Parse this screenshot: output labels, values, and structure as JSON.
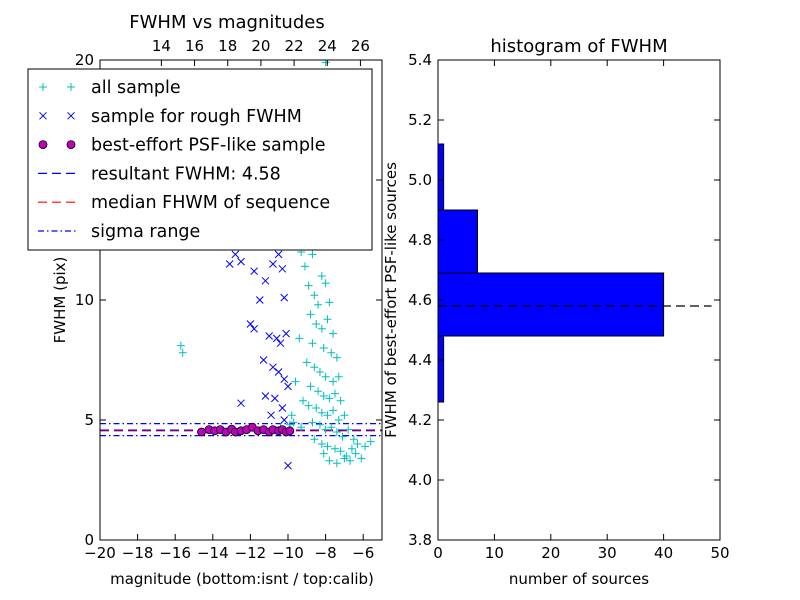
{
  "chart_data": [
    {
      "type": "scatter",
      "title": "FWHM vs magnitudes",
      "xlabel": "magnitude (bottom:isnt / top:calib)",
      "ylabel": "FWHM (pix)",
      "xlim": [
        -20,
        -5
      ],
      "ylim": [
        0,
        20
      ],
      "x_ticks": [
        "−20",
        "−18",
        "−16",
        "−14",
        "−12",
        "−10",
        "−8",
        "−6"
      ],
      "y_ticks": [
        "0",
        "5",
        "10",
        "15",
        "20"
      ],
      "top_axis": {
        "lim": [
          10.3,
          27.3
        ],
        "ticks": [
          "14",
          "16",
          "18",
          "20",
          "22",
          "24",
          "26"
        ]
      },
      "legend": {
        "placement": "upper-left",
        "entries": [
          {
            "label": "all sample",
            "marker": "+",
            "color": "#00bfbf"
          },
          {
            "label": "sample for rough FWHM",
            "marker": "x",
            "color": "#0000ff"
          },
          {
            "label": "best-effort PSF-like sample",
            "marker": "o",
            "color": "#bf00bf"
          },
          {
            "label": "resultant FWHM: 4.58",
            "line": "dashed",
            "color": "#0000ff"
          },
          {
            "label": "median FHWM of sequence",
            "line": "dashed",
            "color": "#ff0000"
          },
          {
            "label": "sigma range",
            "line": "dashdot",
            "color": "#0000ff"
          }
        ]
      },
      "hlines": {
        "resultant_fwhm": 4.58,
        "median_sequence": 4.55,
        "sigma_range": [
          4.35,
          4.85
        ]
      },
      "series": [
        {
          "name": "all sample",
          "marker": "+",
          "color": "#00bfbf",
          "points": [
            [
              -15.7,
              8.1
            ],
            [
              -15.6,
              7.8
            ],
            [
              -9.0,
              13.5
            ],
            [
              -8.9,
              14.2
            ],
            [
              -8.8,
              12.8
            ],
            [
              -8.6,
              15.4
            ],
            [
              -8.5,
              16.5
            ],
            [
              -8.3,
              17.2
            ],
            [
              -8.0,
              19.9
            ],
            [
              -7.9,
              20.0
            ],
            [
              -9.5,
              13.2
            ],
            [
              -9.3,
              12.0
            ],
            [
              -9.1,
              11.4
            ],
            [
              -8.7,
              11.9
            ],
            [
              -8.4,
              12.4
            ],
            [
              -8.2,
              11.0
            ],
            [
              -8.9,
              10.6
            ],
            [
              -8.6,
              10.2
            ],
            [
              -8.4,
              9.8
            ],
            [
              -8.0,
              10.7
            ],
            [
              -7.8,
              9.9
            ],
            [
              -8.8,
              9.4
            ],
            [
              -8.5,
              9.0
            ],
            [
              -8.2,
              8.8
            ],
            [
              -7.9,
              9.2
            ],
            [
              -7.6,
              8.6
            ],
            [
              -9.4,
              8.4
            ],
            [
              -8.7,
              8.2
            ],
            [
              -8.1,
              8.0
            ],
            [
              -7.7,
              7.8
            ],
            [
              -7.4,
              7.6
            ],
            [
              -9.0,
              7.4
            ],
            [
              -8.6,
              7.2
            ],
            [
              -8.3,
              7.0
            ],
            [
              -8.0,
              6.8
            ],
            [
              -7.6,
              6.6
            ],
            [
              -7.3,
              6.8
            ],
            [
              -9.6,
              6.6
            ],
            [
              -8.8,
              6.4
            ],
            [
              -8.4,
              6.2
            ],
            [
              -8.1,
              6.0
            ],
            [
              -7.8,
              5.9
            ],
            [
              -7.5,
              6.1
            ],
            [
              -7.2,
              5.8
            ],
            [
              -9.2,
              5.8
            ],
            [
              -8.9,
              5.6
            ],
            [
              -8.5,
              5.5
            ],
            [
              -8.2,
              5.3
            ],
            [
              -7.9,
              5.2
            ],
            [
              -7.6,
              5.4
            ],
            [
              -7.3,
              5.0
            ],
            [
              -7.0,
              5.2
            ],
            [
              -9.8,
              5.2
            ],
            [
              -8.7,
              4.9
            ],
            [
              -8.3,
              4.8
            ],
            [
              -8.0,
              4.6
            ],
            [
              -7.7,
              4.7
            ],
            [
              -7.4,
              4.5
            ],
            [
              -7.1,
              4.3
            ],
            [
              -6.8,
              4.6
            ],
            [
              -8.6,
              4.2
            ],
            [
              -8.2,
              4.0
            ],
            [
              -7.9,
              3.9
            ],
            [
              -7.5,
              3.8
            ],
            [
              -7.2,
              3.7
            ],
            [
              -6.9,
              3.5
            ],
            [
              -6.6,
              3.8
            ],
            [
              -6.4,
              3.6
            ],
            [
              -6.1,
              3.4
            ],
            [
              -7.8,
              3.3
            ],
            [
              -7.4,
              3.2
            ],
            [
              -7.0,
              3.4
            ],
            [
              -6.7,
              3.3
            ],
            [
              -8.1,
              3.6
            ],
            [
              -9.7,
              4.9
            ],
            [
              -9.3,
              4.7
            ],
            [
              -6.5,
              4.2
            ],
            [
              -6.3,
              4.0
            ],
            [
              -5.9,
              3.9
            ],
            [
              -5.6,
              4.1
            ],
            [
              -10.4,
              4.7
            ],
            [
              -10.1,
              4.5
            ],
            [
              -9.9,
              4.8
            ]
          ]
        },
        {
          "name": "sample for rough FWHM",
          "marker": "x",
          "color": "#0000ff",
          "points": [
            [
              -10.0,
              3.1
            ],
            [
              -12.5,
              11.6
            ],
            [
              -11.8,
              11.2
            ],
            [
              -12.0,
              9.0
            ],
            [
              -11.5,
              10.0
            ],
            [
              -11.2,
              10.8
            ],
            [
              -10.8,
              11.5
            ],
            [
              -10.5,
              11.9
            ],
            [
              -10.3,
              11.3
            ],
            [
              -10.2,
              10.1
            ],
            [
              -11.8,
              8.8
            ],
            [
              -11.0,
              8.5
            ],
            [
              -10.6,
              8.4
            ],
            [
              -10.4,
              8.2
            ],
            [
              -10.1,
              8.6
            ],
            [
              -11.3,
              7.5
            ],
            [
              -10.8,
              7.2
            ],
            [
              -10.5,
              7.0
            ],
            [
              -10.2,
              6.7
            ],
            [
              -10.0,
              6.4
            ],
            [
              -11.2,
              6.0
            ],
            [
              -10.7,
              5.9
            ],
            [
              -10.3,
              5.5
            ],
            [
              -10.9,
              5.2
            ],
            [
              -10.2,
              5.0
            ],
            [
              -12.5,
              5.7
            ],
            [
              -13.1,
              11.5
            ],
            [
              -12.8,
              11.9
            ]
          ]
        },
        {
          "name": "best-effort PSF-like sample",
          "marker": "o",
          "color": "#bf00bf",
          "points": [
            [
              -14.6,
              4.5
            ],
            [
              -14.2,
              4.6
            ],
            [
              -13.9,
              4.55
            ],
            [
              -13.6,
              4.6
            ],
            [
              -13.3,
              4.5
            ],
            [
              -13.0,
              4.62
            ],
            [
              -12.8,
              4.5
            ],
            [
              -12.5,
              4.55
            ],
            [
              -12.2,
              4.6
            ],
            [
              -11.9,
              4.7
            ],
            [
              -11.6,
              4.55
            ],
            [
              -11.3,
              4.6
            ],
            [
              -11.0,
              4.5
            ],
            [
              -10.8,
              4.6
            ],
            [
              -10.5,
              4.55
            ],
            [
              -10.3,
              4.6
            ],
            [
              -10.1,
              4.5
            ],
            [
              -9.9,
              4.55
            ]
          ]
        }
      ]
    },
    {
      "type": "bar",
      "orientation": "horizontal",
      "title": "histogram of FWHM",
      "xlabel": "number of sources",
      "ylabel": "FWHM of best-effort PSF-like sources",
      "xlim": [
        0,
        50
      ],
      "ylim": [
        3.8,
        5.4
      ],
      "x_ticks": [
        "0",
        "10",
        "20",
        "30",
        "40",
        "50"
      ],
      "y_ticks": [
        "3.8",
        "4.0",
        "4.2",
        "4.4",
        "4.6",
        "4.8",
        "5.0",
        "5.2",
        "5.4"
      ],
      "bar_color": "#0000ff",
      "bins": [
        {
          "from": 4.26,
          "to": 4.48,
          "count": 1
        },
        {
          "from": 4.48,
          "to": 4.69,
          "count": 40
        },
        {
          "from": 4.69,
          "to": 4.9,
          "count": 7
        },
        {
          "from": 4.9,
          "to": 5.12,
          "count": 1
        }
      ],
      "reference_line": 4.58
    }
  ]
}
